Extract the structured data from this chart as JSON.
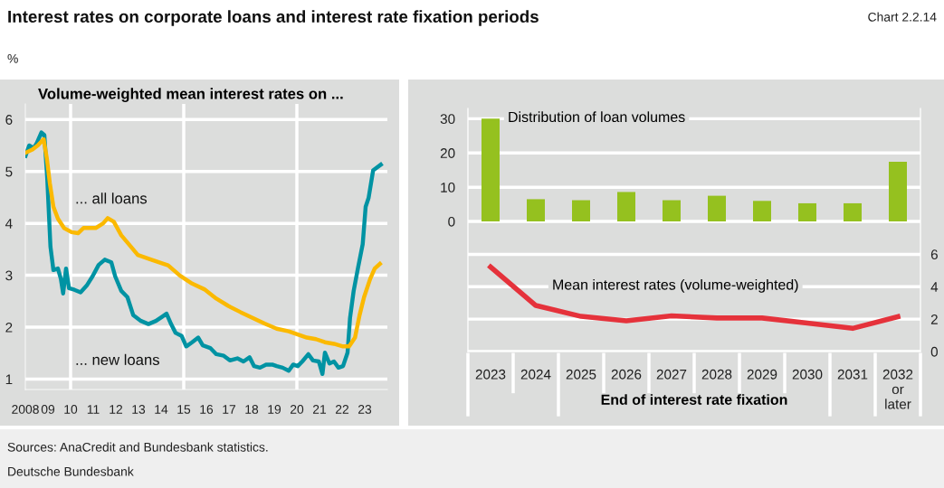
{
  "chart_data": [
    {
      "type": "other",
      "title": "Interest rates on corporate loans and interest rate fixation periods",
      "annotations": [
        "Chart 2.2.14",
        "%",
        "Sources: AnaCredit and Bundesbank statistics.",
        "Deutsche Bundesbank"
      ]
    },
    {
      "type": "line",
      "title": "Volume-weighted mean interest rates on ...",
      "xlim": [
        2008,
        2024
      ],
      "ylim": [
        0.8,
        6.3
      ],
      "yticks": [
        1,
        2,
        3,
        4,
        5,
        6
      ],
      "xticks": [
        {
          "value": 2008,
          "label": "2008"
        },
        {
          "value": 2009,
          "label": "09"
        },
        {
          "value": 2010,
          "label": "10"
        },
        {
          "value": 2011,
          "label": "11"
        },
        {
          "value": 2012,
          "label": "12"
        },
        {
          "value": 2013,
          "label": "13"
        },
        {
          "value": 2014,
          "label": "14"
        },
        {
          "value": 2015,
          "label": "15"
        },
        {
          "value": 2016,
          "label": "16"
        },
        {
          "value": 2017,
          "label": "17"
        },
        {
          "value": 2018,
          "label": "18"
        },
        {
          "value": 2019,
          "label": "19"
        },
        {
          "value": 2020,
          "label": "20"
        },
        {
          "value": 2021,
          "label": "21"
        },
        {
          "value": 2022,
          "label": "22"
        },
        {
          "value": 2023,
          "label": "23"
        }
      ],
      "grid": "y",
      "ref_lines": [
        {
          "axis": "x",
          "value": 2010,
          "color": "#ffffff"
        },
        {
          "axis": "x",
          "value": 2015,
          "color": "#ffffff"
        },
        {
          "axis": "x",
          "value": 2020,
          "color": "#ffffff"
        }
      ],
      "series": [
        {
          "name": "... all loans",
          "color": "#fbb900",
          "x": [
            2008.01,
            2008.31,
            2008.57,
            2008.81,
            2008.95,
            2009.08,
            2009.24,
            2009.44,
            2009.71,
            2010.04,
            2010.33,
            2010.57,
            2011.11,
            2011.44,
            2011.64,
            2011.91,
            2012.24,
            2012.57,
            2012.97,
            2013.51,
            2014.04,
            2014.31,
            2014.84,
            2015.37,
            2015.91,
            2016.44,
            2016.97,
            2017.51,
            2018.04,
            2018.57,
            2019.11,
            2019.64,
            2020.04,
            2020.44,
            2020.84,
            2021.24,
            2021.64,
            2022.04,
            2022.31,
            2022.57,
            2022.77,
            2022.97,
            2023.24,
            2023.44,
            2023.67
          ],
          "values": [
            5.36,
            5.42,
            5.51,
            5.62,
            5.25,
            4.78,
            4.32,
            4.09,
            3.91,
            3.83,
            3.81,
            3.91,
            3.91,
            4.0,
            4.1,
            4.03,
            3.77,
            3.6,
            3.39,
            3.31,
            3.23,
            3.19,
            2.99,
            2.84,
            2.73,
            2.55,
            2.41,
            2.29,
            2.18,
            2.07,
            1.97,
            1.92,
            1.86,
            1.8,
            1.77,
            1.71,
            1.68,
            1.63,
            1.63,
            1.8,
            2.23,
            2.58,
            2.93,
            3.13,
            3.22
          ]
        },
        {
          "name": "... new loans",
          "color": "#0093a3",
          "x": [
            2008.01,
            2008.17,
            2008.37,
            2008.51,
            2008.71,
            2008.84,
            2008.97,
            2009.11,
            2009.24,
            2009.44,
            2009.57,
            2009.67,
            2009.8,
            2009.93,
            2010.17,
            2010.44,
            2010.71,
            2010.97,
            2011.24,
            2011.51,
            2011.8,
            2011.97,
            2012.24,
            2012.51,
            2012.77,
            2013.11,
            2013.44,
            2013.77,
            2014.04,
            2014.24,
            2014.44,
            2014.64,
            2014.91,
            2015.11,
            2015.37,
            2015.64,
            2015.84,
            2016.17,
            2016.44,
            2016.77,
            2017.04,
            2017.37,
            2017.64,
            2017.91,
            2018.11,
            2018.37,
            2018.64,
            2018.91,
            2019.11,
            2019.37,
            2019.64,
            2019.84,
            2020.04,
            2020.24,
            2020.51,
            2020.71,
            2020.97,
            2021.13,
            2021.24,
            2021.44,
            2021.64,
            2021.84,
            2022.04,
            2022.24,
            2022.35,
            2022.51,
            2022.71,
            2022.91,
            2023.04,
            2023.17,
            2023.37,
            2023.71
          ],
          "values": [
            5.3,
            5.5,
            5.45,
            5.55,
            5.75,
            5.7,
            4.85,
            3.55,
            3.1,
            3.13,
            2.93,
            2.65,
            3.13,
            2.75,
            2.72,
            2.67,
            2.8,
            2.98,
            3.2,
            3.3,
            3.25,
            2.98,
            2.7,
            2.58,
            2.23,
            2.12,
            2.06,
            2.12,
            2.2,
            2.26,
            2.06,
            1.89,
            1.83,
            1.63,
            1.71,
            1.8,
            1.65,
            1.6,
            1.48,
            1.45,
            1.36,
            1.4,
            1.34,
            1.42,
            1.25,
            1.22,
            1.28,
            1.28,
            1.25,
            1.22,
            1.16,
            1.28,
            1.25,
            1.34,
            1.48,
            1.36,
            1.34,
            1.1,
            1.51,
            1.3,
            1.34,
            1.22,
            1.25,
            1.51,
            2.18,
            2.7,
            3.16,
            3.6,
            4.32,
            4.49,
            5.02,
            5.13
          ]
        }
      ]
    },
    {
      "type": "bar",
      "xlabel": "End of interest rate fixation",
      "categories": [
        "2023",
        "2024",
        "2025",
        "2026",
        "2027",
        "2028",
        "2029",
        "2030",
        "2031",
        "2032\nor\nlater"
      ],
      "ylim": [
        -38,
        33
      ],
      "yticks": [
        0,
        10,
        20,
        30
      ],
      "y2lim": [
        0,
        15
      ],
      "y2ticks": [
        0,
        2,
        4,
        6
      ],
      "grid": "y",
      "marker": "none",
      "line_style": "solid",
      "series": [
        {
          "name": "Distribution of loan volumes",
          "color": "#95c11f",
          "values": [
            30.0,
            6.5,
            6.2,
            8.6,
            6.2,
            7.5,
            6.0,
            5.3,
            5.3,
            17.4
          ]
        },
        {
          "name": "Mean interest rates (volume-weighted)",
          "type": "line",
          "axis": "y2",
          "color": "#e5323b",
          "values": [
            5.22,
            2.84,
            2.17,
            1.9,
            2.2,
            2.07,
            2.07,
            1.76,
            1.43,
            2.15
          ]
        }
      ]
    }
  ]
}
